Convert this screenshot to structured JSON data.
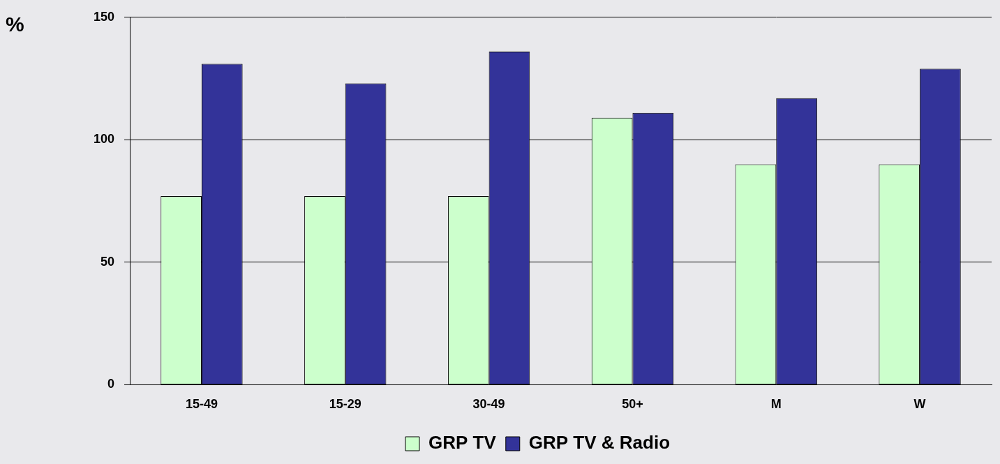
{
  "chart_data": {
    "type": "bar",
    "y_label": "%",
    "categories": [
      "15-49",
      "15-29",
      "30-49",
      "50+",
      "M",
      "W"
    ],
    "series": [
      {
        "name": "GRP TV",
        "color": "#ccffcc",
        "values": [
          77,
          77,
          77,
          109,
          90,
          90
        ]
      },
      {
        "name": "GRP TV & Radio",
        "color": "#333399",
        "values": [
          131,
          123,
          136,
          111,
          117,
          129
        ]
      }
    ],
    "ylim": [
      0,
      150
    ],
    "yticks": [
      0,
      50,
      100,
      150
    ],
    "grid": true,
    "legend": "bottom"
  }
}
